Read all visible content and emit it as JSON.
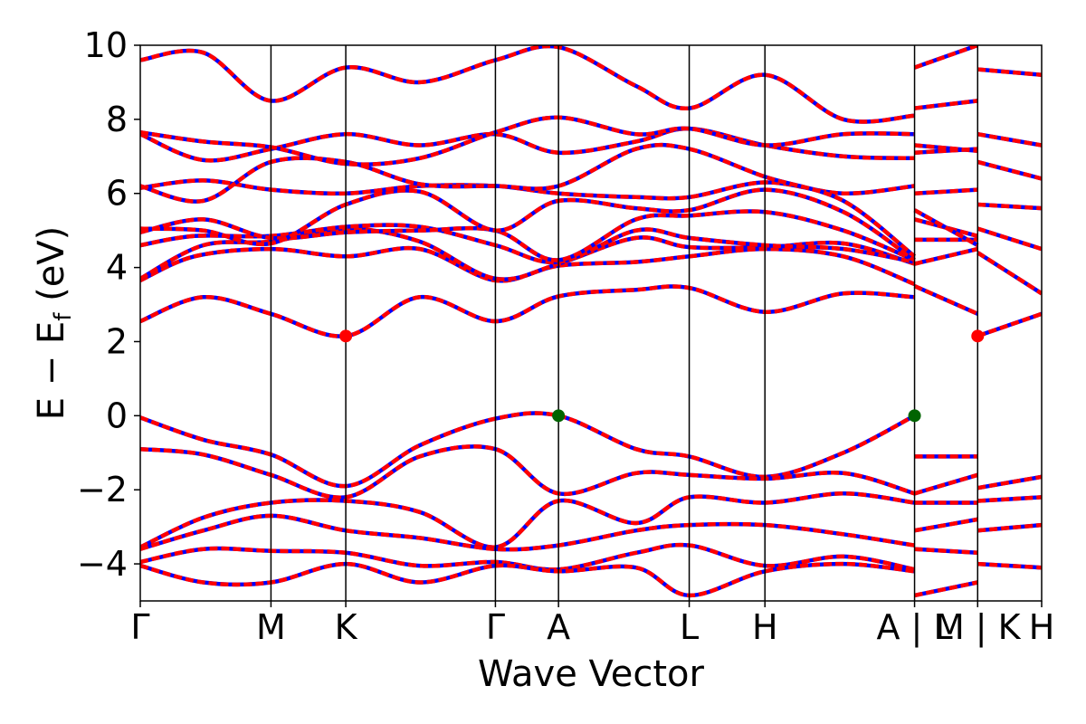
{
  "chart_data": {
    "type": "line",
    "xlabel": "Wave Vector",
    "ylabel": {
      "prefix": "E − E",
      "subscript": "f",
      "suffix": " (eV)"
    },
    "ylim": [
      -5,
      10
    ],
    "yticks": [
      -4,
      -2,
      0,
      2,
      4,
      6,
      8,
      10
    ],
    "ytick_labels": [
      "−4",
      "−2",
      "0",
      "2",
      "4",
      "6",
      "8",
      "10"
    ],
    "xlim": [
      0,
      1
    ],
    "kpoints": [
      {
        "label": "Γ",
        "x": 0.0
      },
      {
        "label": "M",
        "x": 0.145
      },
      {
        "label": "K",
        "x": 0.228
      },
      {
        "label": "Γ",
        "x": 0.394
      },
      {
        "label": "A",
        "x": 0.464
      },
      {
        "label": "L",
        "x": 0.609
      },
      {
        "label": "H",
        "x": 0.693
      },
      {
        "label": "A | L",
        "x": 0.859
      },
      {
        "label": "M | K",
        "x": 0.929
      },
      {
        "label": "H",
        "x": 1.0
      }
    ],
    "segments": [
      [
        0,
        0.859
      ],
      [
        0.859,
        0.929
      ],
      [
        0.929,
        1.0
      ]
    ],
    "series": [],
    "markers": {
      "cbm": [
        {
          "x": 0.228,
          "y": 2.15,
          "color": "#ff0000"
        },
        {
          "x": 0.929,
          "y": 2.15,
          "color": "#ff0000"
        }
      ],
      "vbm": [
        {
          "x": 0.464,
          "y": 0.0,
          "color": "#006400"
        },
        {
          "x": 0.859,
          "y": 0.0,
          "color": "#006400"
        }
      ]
    },
    "colors": {
      "band_a": "#0000ff",
      "band_b": "#ff0000",
      "frame": "#000000"
    },
    "bands": {
      "main": [
        [
          [
            0,
            2.55
          ],
          [
            0.07,
            3.2
          ],
          [
            0.145,
            2.75
          ],
          [
            0.228,
            2.15
          ],
          [
            0.31,
            3.2
          ],
          [
            0.394,
            2.55
          ],
          [
            0.464,
            3.22
          ],
          [
            0.55,
            3.4
          ],
          [
            0.609,
            3.45
          ],
          [
            0.693,
            2.8
          ],
          [
            0.78,
            3.3
          ],
          [
            0.859,
            3.2
          ]
        ],
        [
          [
            0,
            3.65
          ],
          [
            0.06,
            4.3
          ],
          [
            0.145,
            4.5
          ],
          [
            0.228,
            4.3
          ],
          [
            0.31,
            4.5
          ],
          [
            0.394,
            3.65
          ],
          [
            0.464,
            4.05
          ],
          [
            0.55,
            4.15
          ],
          [
            0.609,
            4.3
          ],
          [
            0.693,
            4.5
          ],
          [
            0.78,
            4.3
          ],
          [
            0.859,
            3.55
          ]
        ],
        [
          [
            0,
            3.7
          ],
          [
            0.07,
            4.6
          ],
          [
            0.145,
            4.7
          ],
          [
            0.228,
            5.05
          ],
          [
            0.31,
            4.7
          ],
          [
            0.394,
            3.7
          ],
          [
            0.464,
            4.1
          ],
          [
            0.55,
            4.8
          ],
          [
            0.609,
            4.55
          ],
          [
            0.693,
            4.55
          ],
          [
            0.78,
            4.65
          ],
          [
            0.859,
            4.1
          ]
        ],
        [
          [
            0,
            4.6
          ],
          [
            0.06,
            4.85
          ],
          [
            0.145,
            4.85
          ],
          [
            0.228,
            5.1
          ],
          [
            0.31,
            5.1
          ],
          [
            0.394,
            4.6
          ],
          [
            0.464,
            4.15
          ],
          [
            0.55,
            5.0
          ],
          [
            0.609,
            4.8
          ],
          [
            0.693,
            4.6
          ],
          [
            0.78,
            4.5
          ],
          [
            0.859,
            4.15
          ]
        ],
        [
          [
            0,
            4.95
          ],
          [
            0.07,
            5.3
          ],
          [
            0.145,
            4.8
          ],
          [
            0.228,
            4.95
          ],
          [
            0.31,
            5.0
          ],
          [
            0.394,
            5.0
          ],
          [
            0.464,
            4.2
          ],
          [
            0.55,
            5.3
          ],
          [
            0.609,
            5.4
          ],
          [
            0.693,
            5.5
          ],
          [
            0.78,
            5.0
          ],
          [
            0.859,
            4.2
          ]
        ],
        [
          [
            0,
            5.05
          ],
          [
            0.07,
            5.0
          ],
          [
            0.145,
            4.65
          ],
          [
            0.228,
            5.7
          ],
          [
            0.31,
            6.05
          ],
          [
            0.394,
            5.0
          ],
          [
            0.464,
            5.8
          ],
          [
            0.55,
            5.6
          ],
          [
            0.609,
            5.55
          ],
          [
            0.693,
            6.1
          ],
          [
            0.78,
            5.5
          ],
          [
            0.859,
            4.2
          ]
        ],
        [
          [
            0,
            6.15
          ],
          [
            0.07,
            6.35
          ],
          [
            0.145,
            6.1
          ],
          [
            0.228,
            6.0
          ],
          [
            0.31,
            6.2
          ],
          [
            0.394,
            6.2
          ],
          [
            0.464,
            6.0
          ],
          [
            0.55,
            5.9
          ],
          [
            0.609,
            5.9
          ],
          [
            0.693,
            6.3
          ],
          [
            0.78,
            6.0
          ],
          [
            0.859,
            6.2
          ]
        ],
        [
          [
            0,
            6.2
          ],
          [
            0.07,
            5.8
          ],
          [
            0.145,
            6.85
          ],
          [
            0.228,
            6.85
          ],
          [
            0.31,
            6.25
          ],
          [
            0.394,
            6.2
          ],
          [
            0.464,
            6.2
          ],
          [
            0.55,
            7.2
          ],
          [
            0.609,
            7.2
          ],
          [
            0.693,
            6.45
          ],
          [
            0.78,
            5.8
          ],
          [
            0.859,
            4.3
          ]
        ],
        [
          [
            0,
            7.6
          ],
          [
            0.07,
            6.9
          ],
          [
            0.145,
            7.2
          ],
          [
            0.228,
            7.6
          ],
          [
            0.31,
            7.3
          ],
          [
            0.394,
            7.6
          ],
          [
            0.464,
            7.1
          ],
          [
            0.55,
            7.4
          ],
          [
            0.609,
            7.75
          ],
          [
            0.693,
            7.3
          ],
          [
            0.78,
            7.0
          ],
          [
            0.859,
            6.95
          ]
        ],
        [
          [
            0,
            7.65
          ],
          [
            0.07,
            7.4
          ],
          [
            0.145,
            7.25
          ],
          [
            0.228,
            6.8
          ],
          [
            0.31,
            6.95
          ],
          [
            0.394,
            7.65
          ],
          [
            0.464,
            8.05
          ],
          [
            0.55,
            7.6
          ],
          [
            0.609,
            7.75
          ],
          [
            0.693,
            7.3
          ],
          [
            0.78,
            7.6
          ],
          [
            0.859,
            7.6
          ]
        ],
        [
          [
            0,
            9.6
          ],
          [
            0.07,
            9.8
          ],
          [
            0.145,
            8.5
          ],
          [
            0.228,
            9.4
          ],
          [
            0.31,
            9.0
          ],
          [
            0.394,
            9.6
          ],
          [
            0.464,
            9.95
          ],
          [
            0.55,
            8.9
          ],
          [
            0.609,
            8.3
          ],
          [
            0.693,
            9.2
          ],
          [
            0.78,
            8.0
          ],
          [
            0.859,
            8.1
          ]
        ],
        [
          [
            0,
            -0.05
          ],
          [
            0.07,
            -0.65
          ],
          [
            0.145,
            -1.05
          ],
          [
            0.228,
            -1.9
          ],
          [
            0.31,
            -0.8
          ],
          [
            0.394,
            -0.08
          ],
          [
            0.464,
            0.0
          ],
          [
            0.55,
            -0.9
          ],
          [
            0.609,
            -1.1
          ],
          [
            0.693,
            -1.65
          ],
          [
            0.78,
            -1.0
          ],
          [
            0.859,
            0.0
          ]
        ],
        [
          [
            0,
            -0.9
          ],
          [
            0.07,
            -1.05
          ],
          [
            0.145,
            -1.6
          ],
          [
            0.228,
            -2.2
          ],
          [
            0.31,
            -1.1
          ],
          [
            0.394,
            -0.9
          ],
          [
            0.464,
            -2.1
          ],
          [
            0.55,
            -1.55
          ],
          [
            0.609,
            -1.6
          ],
          [
            0.693,
            -1.7
          ],
          [
            0.78,
            -1.55
          ],
          [
            0.859,
            -2.1
          ]
        ],
        [
          [
            0,
            -3.55
          ],
          [
            0.07,
            -2.75
          ],
          [
            0.145,
            -2.35
          ],
          [
            0.228,
            -2.3
          ],
          [
            0.31,
            -2.6
          ],
          [
            0.394,
            -3.55
          ],
          [
            0.464,
            -2.3
          ],
          [
            0.55,
            -2.9
          ],
          [
            0.609,
            -2.2
          ],
          [
            0.693,
            -2.35
          ],
          [
            0.78,
            -2.1
          ],
          [
            0.859,
            -2.35
          ]
        ],
        [
          [
            0,
            -3.6
          ],
          [
            0.07,
            -3.1
          ],
          [
            0.145,
            -2.7
          ],
          [
            0.228,
            -3.1
          ],
          [
            0.31,
            -3.3
          ],
          [
            0.394,
            -3.6
          ],
          [
            0.464,
            -3.5
          ],
          [
            0.55,
            -3.1
          ],
          [
            0.609,
            -2.95
          ],
          [
            0.693,
            -2.95
          ],
          [
            0.78,
            -3.2
          ],
          [
            0.859,
            -3.5
          ]
        ],
        [
          [
            0,
            -3.95
          ],
          [
            0.07,
            -3.6
          ],
          [
            0.145,
            -3.65
          ],
          [
            0.228,
            -3.7
          ],
          [
            0.31,
            -4.05
          ],
          [
            0.394,
            -3.95
          ],
          [
            0.464,
            -4.15
          ],
          [
            0.55,
            -3.7
          ],
          [
            0.609,
            -3.5
          ],
          [
            0.693,
            -4.05
          ],
          [
            0.78,
            -3.8
          ],
          [
            0.859,
            -4.15
          ]
        ],
        [
          [
            0,
            -4.05
          ],
          [
            0.07,
            -4.5
          ],
          [
            0.145,
            -4.5
          ],
          [
            0.228,
            -4.0
          ],
          [
            0.31,
            -4.5
          ],
          [
            0.394,
            -4.05
          ],
          [
            0.464,
            -4.2
          ],
          [
            0.55,
            -4.1
          ],
          [
            0.609,
            -4.85
          ],
          [
            0.693,
            -4.2
          ],
          [
            0.78,
            -4.0
          ],
          [
            0.859,
            -4.2
          ]
        ]
      ],
      "mid": [
        [
          [
            0.859,
            -4.85
          ],
          [
            0.929,
            -4.5
          ]
        ],
        [
          [
            0.859,
            -3.6
          ],
          [
            0.929,
            -3.7
          ]
        ],
        [
          [
            0.859,
            -3.1
          ],
          [
            0.929,
            -2.8
          ]
        ],
        [
          [
            0.859,
            -2.35
          ],
          [
            0.929,
            -2.35
          ]
        ],
        [
          [
            0.859,
            -2.1
          ],
          [
            0.929,
            -1.6
          ]
        ],
        [
          [
            0.859,
            -1.1
          ],
          [
            0.929,
            -1.1
          ]
        ],
        [
          [
            0.859,
            3.5
          ],
          [
            0.929,
            2.75
          ]
        ],
        [
          [
            0.859,
            4.1
          ],
          [
            0.929,
            4.5
          ]
        ],
        [
          [
            0.859,
            4.75
          ],
          [
            0.929,
            4.75
          ]
        ],
        [
          [
            0.859,
            5.3
          ],
          [
            0.929,
            4.85
          ]
        ],
        [
          [
            0.859,
            5.55
          ],
          [
            0.929,
            4.6
          ]
        ],
        [
          [
            0.859,
            6.0
          ],
          [
            0.929,
            6.1
          ]
        ],
        [
          [
            0.859,
            7.1
          ],
          [
            0.929,
            7.2
          ]
        ],
        [
          [
            0.859,
            7.3
          ],
          [
            0.929,
            7.15
          ]
        ],
        [
          [
            0.859,
            8.3
          ],
          [
            0.929,
            8.5
          ]
        ],
        [
          [
            0.859,
            9.4
          ],
          [
            0.929,
            10.0
          ]
        ]
      ],
      "right": [
        [
          [
            0.929,
            -4.0
          ],
          [
            1.0,
            -4.1
          ]
        ],
        [
          [
            0.929,
            -3.1
          ],
          [
            1.0,
            -2.95
          ]
        ],
        [
          [
            0.929,
            -2.3
          ],
          [
            1.0,
            -2.2
          ]
        ],
        [
          [
            0.929,
            -1.95
          ],
          [
            1.0,
            -1.65
          ]
        ],
        [
          [
            0.929,
            2.15
          ],
          [
            1.0,
            2.75
          ]
        ],
        [
          [
            0.929,
            4.4
          ],
          [
            1.0,
            3.3
          ]
        ],
        [
          [
            0.929,
            5.05
          ],
          [
            1.0,
            4.5
          ]
        ],
        [
          [
            0.929,
            5.7
          ],
          [
            1.0,
            5.6
          ]
        ],
        [
          [
            0.929,
            6.85
          ],
          [
            1.0,
            6.4
          ]
        ],
        [
          [
            0.929,
            7.6
          ],
          [
            1.0,
            7.3
          ]
        ],
        [
          [
            0.929,
            9.35
          ],
          [
            1.0,
            9.2
          ]
        ]
      ]
    }
  }
}
